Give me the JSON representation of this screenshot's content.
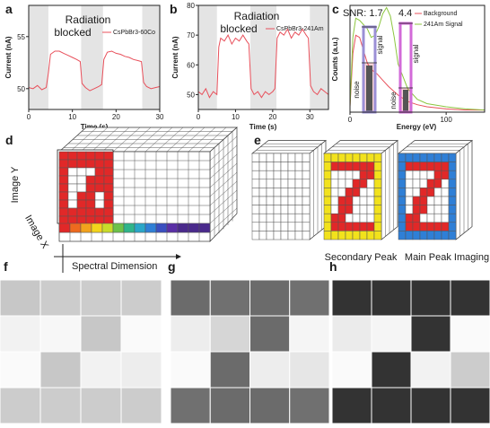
{
  "panels": {
    "a": {
      "label": "a",
      "ylabel": "Current (nA)",
      "xlabel": "Time (s)",
      "annotation_line1": "Radiation",
      "annotation_line2": "blocked",
      "legend": "CsPbBr3-60Co"
    },
    "b": {
      "label": "b",
      "ylabel": "Current (nA)",
      "xlabel": "Time (s)",
      "annotation_line1": "Radiation",
      "annotation_line2": "blocked",
      "legend": "CsPbBr3-241Am"
    },
    "c": {
      "label": "c",
      "ylabel": "Counts (a.u.)",
      "xlabel": "Energy (eV)",
      "snr1": "SNR: 1.7",
      "snr2": "4.4",
      "noise_label": "noise",
      "signal_label": "signal",
      "legend_background": "Background",
      "legend_signal": "241Am Signal"
    },
    "d": {
      "label": "d",
      "image_y": "Image Y",
      "image_x": "Image X",
      "spectral": "Spectral Dimension"
    },
    "e": {
      "label": "e",
      "caption_secondary": "Secondary Peak",
      "caption_main": "Main Peak Imaging"
    },
    "f": {
      "label": "f"
    },
    "g": {
      "label": "g"
    },
    "h": {
      "label": "h"
    }
  },
  "chart_data": [
    {
      "id": "a",
      "type": "line",
      "xlabel": "Time (s)",
      "ylabel": "Current (nA)",
      "xlim": [
        0,
        30
      ],
      "ylim": [
        48,
        58
      ],
      "xticks": [
        0,
        10,
        20,
        30
      ],
      "yticks": [
        50,
        55
      ],
      "legend": [
        "CsPbBr3-60Co"
      ],
      "blocked_intervals": [
        [
          0,
          4.5
        ],
        [
          12,
          17
        ],
        [
          26,
          30
        ]
      ],
      "series": [
        {
          "name": "CsPbBr3-60Co",
          "color": "#e8505b",
          "x": [
            0,
            1,
            2,
            3,
            4,
            4.5,
            5,
            6,
            7,
            8,
            9,
            10,
            11,
            11.8,
            12.2,
            13,
            14,
            15,
            16,
            16.7,
            17.2,
            18,
            19,
            20,
            21,
            22,
            23,
            24,
            25,
            25.8,
            26.3,
            27,
            28,
            29,
            30
          ],
          "y": [
            50.1,
            50.0,
            50.3,
            49.9,
            50.1,
            51.5,
            53.3,
            53.6,
            53.6,
            53.4,
            53.2,
            53.0,
            52.8,
            52.6,
            50.5,
            50.1,
            49.8,
            50.0,
            50.2,
            50.4,
            52.8,
            53.5,
            53.6,
            53.4,
            53.3,
            53.1,
            53.0,
            52.8,
            52.7,
            52.6,
            50.6,
            50.2,
            50.0,
            50.1,
            50.2
          ]
        }
      ]
    },
    {
      "id": "b",
      "type": "line",
      "xlabel": "Time (s)",
      "ylabel": "Current (nA)",
      "xlim": [
        0,
        35
      ],
      "ylim": [
        45,
        80
      ],
      "xticks": [
        0,
        10,
        20,
        30
      ],
      "yticks": [
        50,
        60,
        70,
        80
      ],
      "legend": [
        "CsPbBr3-241Am"
      ],
      "blocked_intervals": [
        [
          0,
          5
        ],
        [
          14,
          21
        ],
        [
          30,
          35
        ]
      ],
      "series": [
        {
          "name": "CsPbBr3-241Am",
          "color": "#e8505b",
          "x": [
            0,
            1,
            2,
            3,
            4,
            5,
            5.5,
            6,
            7,
            8,
            9,
            10,
            11,
            12,
            13,
            13.6,
            14.2,
            15,
            16,
            17,
            18,
            19,
            20,
            20.6,
            21.2,
            22,
            23,
            24,
            25,
            26,
            27,
            28,
            29,
            29.6,
            30.2,
            31,
            32,
            33,
            34,
            35
          ],
          "y": [
            51,
            50,
            52,
            49,
            51,
            50,
            66,
            69,
            68,
            70,
            67,
            69,
            68,
            70,
            68,
            67,
            52,
            50,
            51,
            49,
            51,
            50,
            51,
            52,
            69,
            71,
            70,
            72,
            69,
            71,
            70,
            72,
            70,
            69,
            53,
            51,
            50,
            52,
            51,
            50
          ]
        }
      ]
    },
    {
      "id": "c",
      "type": "line",
      "xlabel": "Energy (eV)",
      "ylabel": "Counts (a.u.)",
      "xlim": [
        0,
        140
      ],
      "ylim": [
        0,
        1
      ],
      "xticks": [
        0,
        100
      ],
      "legend": [
        "Background",
        "241Am Signal"
      ],
      "series": [
        {
          "name": "Background",
          "color": "#e8505b",
          "x": [
            0,
            3,
            6,
            10,
            14,
            18,
            22,
            28,
            34,
            40,
            50,
            60,
            70,
            80,
            100,
            120,
            140
          ],
          "y": [
            0.05,
            0.55,
            0.72,
            0.7,
            0.58,
            0.46,
            0.4,
            0.36,
            0.3,
            0.24,
            0.16,
            0.1,
            0.07,
            0.05,
            0.03,
            0.02,
            0.02
          ]
        },
        {
          "name": "241Am Signal",
          "color": "#8cc63f",
          "x": [
            0,
            3,
            6,
            10,
            14,
            18,
            22,
            26,
            30,
            34,
            38,
            42,
            46,
            50,
            60,
            70,
            80,
            100,
            120,
            140
          ],
          "y": [
            0.05,
            0.7,
            0.88,
            0.86,
            0.82,
            0.78,
            0.7,
            0.72,
            0.8,
            0.92,
            0.98,
            0.9,
            0.7,
            0.45,
            0.22,
            0.12,
            0.08,
            0.05,
            0.03,
            0.02
          ]
        }
      ],
      "snr": [
        1.7,
        4.4
      ]
    },
    {
      "id": "f",
      "type": "heatmap",
      "rows": 4,
      "cols": 4,
      "values": [
        [
          0.78,
          0.8,
          0.8,
          0.8
        ],
        [
          0.95,
          0.97,
          0.78,
          0.98
        ],
        [
          0.98,
          0.78,
          0.95,
          0.93
        ],
        [
          0.8,
          0.8,
          0.8,
          0.8
        ]
      ]
    },
    {
      "id": "g",
      "type": "heatmap",
      "rows": 4,
      "cols": 4,
      "values": [
        [
          0.42,
          0.44,
          0.42,
          0.44
        ],
        [
          0.93,
          0.84,
          0.42,
          0.96
        ],
        [
          0.98,
          0.42,
          0.93,
          0.9
        ],
        [
          0.44,
          0.42,
          0.42,
          0.44
        ]
      ]
    },
    {
      "id": "h",
      "type": "heatmap",
      "rows": 4,
      "cols": 4,
      "values": [
        [
          0.2,
          0.2,
          0.2,
          0.2
        ],
        [
          0.92,
          0.96,
          0.2,
          0.98
        ],
        [
          0.98,
          0.2,
          0.95,
          0.8
        ],
        [
          0.2,
          0.2,
          0.2,
          0.2
        ]
      ]
    }
  ]
}
